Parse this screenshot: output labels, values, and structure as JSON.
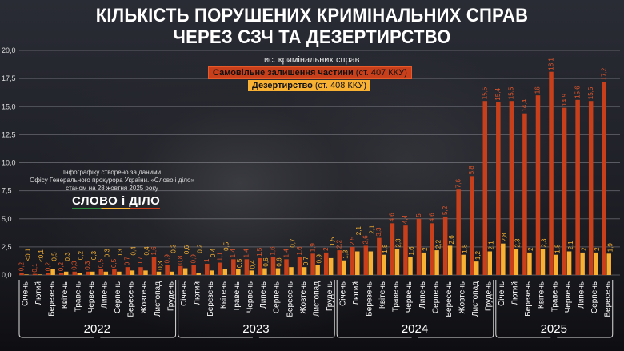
{
  "title_lines": [
    "КІЛЬКІСТЬ ПОРУШЕНИХ КРИМІНАЛЬНИХ СПРАВ",
    "ЧЕРЕЗ СЗЧ ТА ДЕЗЕРТИРСТВО"
  ],
  "credit": {
    "line1": "Інфографіку створено за даними",
    "line2": "Офісу Генерального прокурора України. «Слово і діло»",
    "line3": "станом на 28 жовтня 2025 року",
    "logo": "СЛОВО і ДІЛО"
  },
  "legend": {
    "unit": "тис. кримінальних справ",
    "s1_bold": "Самовільне залишення частини",
    "s1_rest": " (ст. 407 ККУ)",
    "s2_bold": "Дезертирство",
    "s2_rest": " (ст. 408 ККУ)"
  },
  "chart_data": {
    "type": "bar",
    "title": "КІЛЬКІСТЬ ПОРУШЕНИХ КРИМІНАЛЬНИХ СПРАВ ЧЕРЕЗ СЗЧ ТА ДЕЗЕРТИРСТВО",
    "ylabel": "тис. кримінальних справ",
    "ylim": [
      0,
      20
    ],
    "yticks": [
      "0,0",
      "2,5",
      "5,0",
      "7,5",
      "10,0",
      "12,5",
      "15,0",
      "17,5",
      "20,0"
    ],
    "grid": true,
    "legend_position": "top-center",
    "colors": {
      "s1": "#c8401b",
      "s2": "#f8b133"
    },
    "groups": [
      {
        "year": "2022",
        "months": [
          "Січень",
          "Лютий",
          "Березень",
          "Квітень",
          "Травень",
          "Червень",
          "Липень",
          "Серпень",
          "Вересень",
          "Жовтень",
          "Листопад",
          "Грудень"
        ]
      },
      {
        "year": "2023",
        "months": [
          "Січень",
          "Лютий",
          "Березень",
          "Квітень",
          "Травень",
          "Червень",
          "Липень",
          "Серпень",
          "Вересень",
          "Жовтень",
          "Листопад",
          "Грудень"
        ]
      },
      {
        "year": "2024",
        "months": [
          "Січень",
          "Лютий",
          "Березень",
          "Квітень",
          "Травень",
          "Червень",
          "Липень",
          "Серпень",
          "Вересень",
          "Жовтень",
          "Листопад",
          "Грудень"
        ]
      },
      {
        "year": "2025",
        "months": [
          "Січень",
          "Лютий",
          "Березень",
          "Квітень",
          "Травень",
          "Червень",
          "Липень",
          "Серпень",
          "Вересень"
        ]
      }
    ],
    "series": [
      {
        "name": "Самовільне залишення частини (ст. 407 ККУ)",
        "values": [
          0.2,
          0.1,
          0.2,
          0.2,
          0.3,
          0.3,
          0.5,
          0.5,
          0.7,
          0.7,
          1.6,
          0.9,
          0.8,
          0.9,
          1,
          1.1,
          1.4,
          1.4,
          1.5,
          1.6,
          1.4,
          1.6,
          1.9,
          2,
          2.2,
          2.5,
          2.6,
          3.3,
          4.6,
          4.4,
          5,
          4.6,
          5.2,
          7.6,
          8.8,
          15.5,
          15.4,
          15.5,
          14.4,
          16,
          18.1,
          14.9,
          15.6,
          15.5,
          17.2
        ]
      },
      {
        "name": "Дезертирство (ст. 408 ККУ)",
        "values": [
          "<0.1",
          "<0.1",
          0.5,
          0.3,
          0.2,
          0.3,
          0.3,
          0.3,
          0.4,
          0.4,
          0.3,
          0.3,
          0.6,
          0.2,
          0.4,
          0.5,
          0.5,
          0.4,
          0.6,
          0.6,
          0.7,
          0.7,
          0.9,
          1.5,
          1.3,
          2.1,
          2.1,
          1.8,
          2.3,
          1.6,
          2,
          2.2,
          2.6,
          1.8,
          1.2,
          2.1,
          2.8,
          2.3,
          2,
          2.3,
          1.8,
          2.1,
          2,
          2,
          1.9
        ]
      }
    ]
  }
}
